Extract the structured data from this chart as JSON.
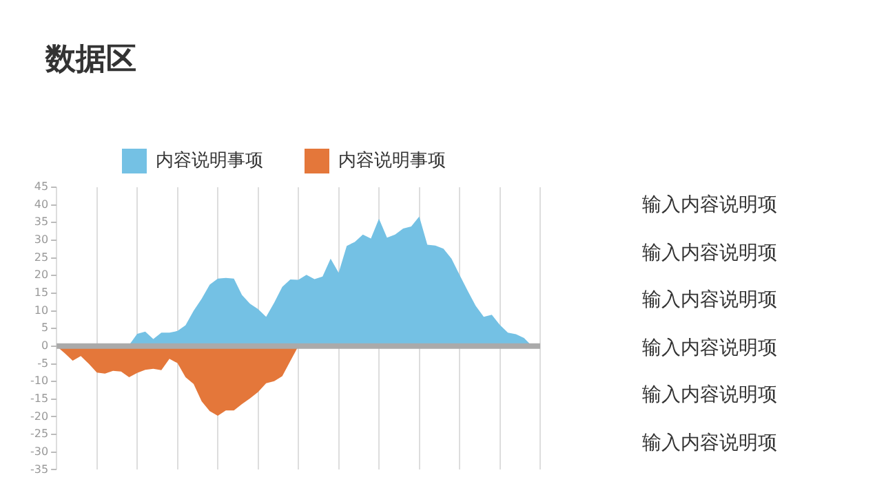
{
  "chart_data": {
    "type": "area",
    "title": "数据区",
    "categories": [
      null,
      null,
      null,
      null,
      null,
      null,
      null,
      null,
      null,
      null,
      null,
      null,
      null,
      null,
      null,
      null,
      null,
      null,
      null,
      null,
      null,
      null,
      null,
      null,
      null,
      null,
      null,
      null,
      null,
      null,
      null,
      null,
      null,
      null,
      null,
      null,
      null,
      null,
      null,
      null,
      null,
      null,
      null,
      null,
      null,
      null,
      null,
      null,
      null,
      null,
      null,
      null,
      null,
      null,
      null,
      null,
      null,
      null,
      null,
      null,
      null
    ],
    "series": [
      {
        "name": "内容说明事项",
        "color": "#74c1e4",
        "values": [
          0,
          0,
          0,
          0,
          0,
          0,
          0,
          0,
          0,
          0.3,
          3.5,
          4.1,
          2,
          3.8,
          3.8,
          4.3,
          5.9,
          10,
          13.4,
          17.4,
          19.1,
          19.3,
          19.1,
          14.5,
          12,
          10.5,
          8.3,
          12.3,
          16.8,
          18.9,
          18.8,
          20.2,
          19,
          19.7,
          24.8,
          20.8,
          28.4,
          29.5,
          31.6,
          30.5,
          36.1,
          30.7,
          31.6,
          33.3,
          33.9,
          36.7,
          28.7,
          28.5,
          27.6,
          24.8,
          20.2,
          15.7,
          11.4,
          8.3,
          8.9,
          6,
          3.8,
          3.4,
          2.3,
          0,
          0
        ]
      },
      {
        "name": "内容说明事项",
        "color": "#e4773a",
        "values": [
          0,
          -2,
          -4.1,
          -2.8,
          -5,
          -7.5,
          -7.8,
          -7,
          -7.2,
          -8.8,
          -7.6,
          -6.7,
          -6.4,
          -6.8,
          -3.6,
          -4.8,
          -8.8,
          -10.7,
          -15.6,
          -18.4,
          -19.7,
          -18.2,
          -18.2,
          -16.4,
          -14.8,
          -13,
          -10.5,
          -9.9,
          -8.5,
          -4.2,
          0,
          0,
          0,
          0,
          0,
          0,
          0,
          0,
          0,
          0,
          0,
          0,
          0,
          0,
          0,
          0,
          0,
          0,
          0,
          0,
          0,
          0,
          0,
          0,
          0,
          0,
          0,
          0,
          0,
          0,
          0
        ]
      }
    ],
    "ylim": [
      -35,
      45
    ],
    "yticks": [
      -35,
      -30,
      -25,
      -20,
      -15,
      -10,
      -5,
      0,
      5,
      10,
      15,
      20,
      25,
      30,
      35,
      40,
      45
    ],
    "grid": "x",
    "legend": "top",
    "tick_labels": "y",
    "annotations": [
      "输入内容说明项",
      "输入内容说明项",
      "输入内容说明项",
      "输入内容说明项",
      "输入内容说明项",
      "输入内容说明项"
    ]
  }
}
